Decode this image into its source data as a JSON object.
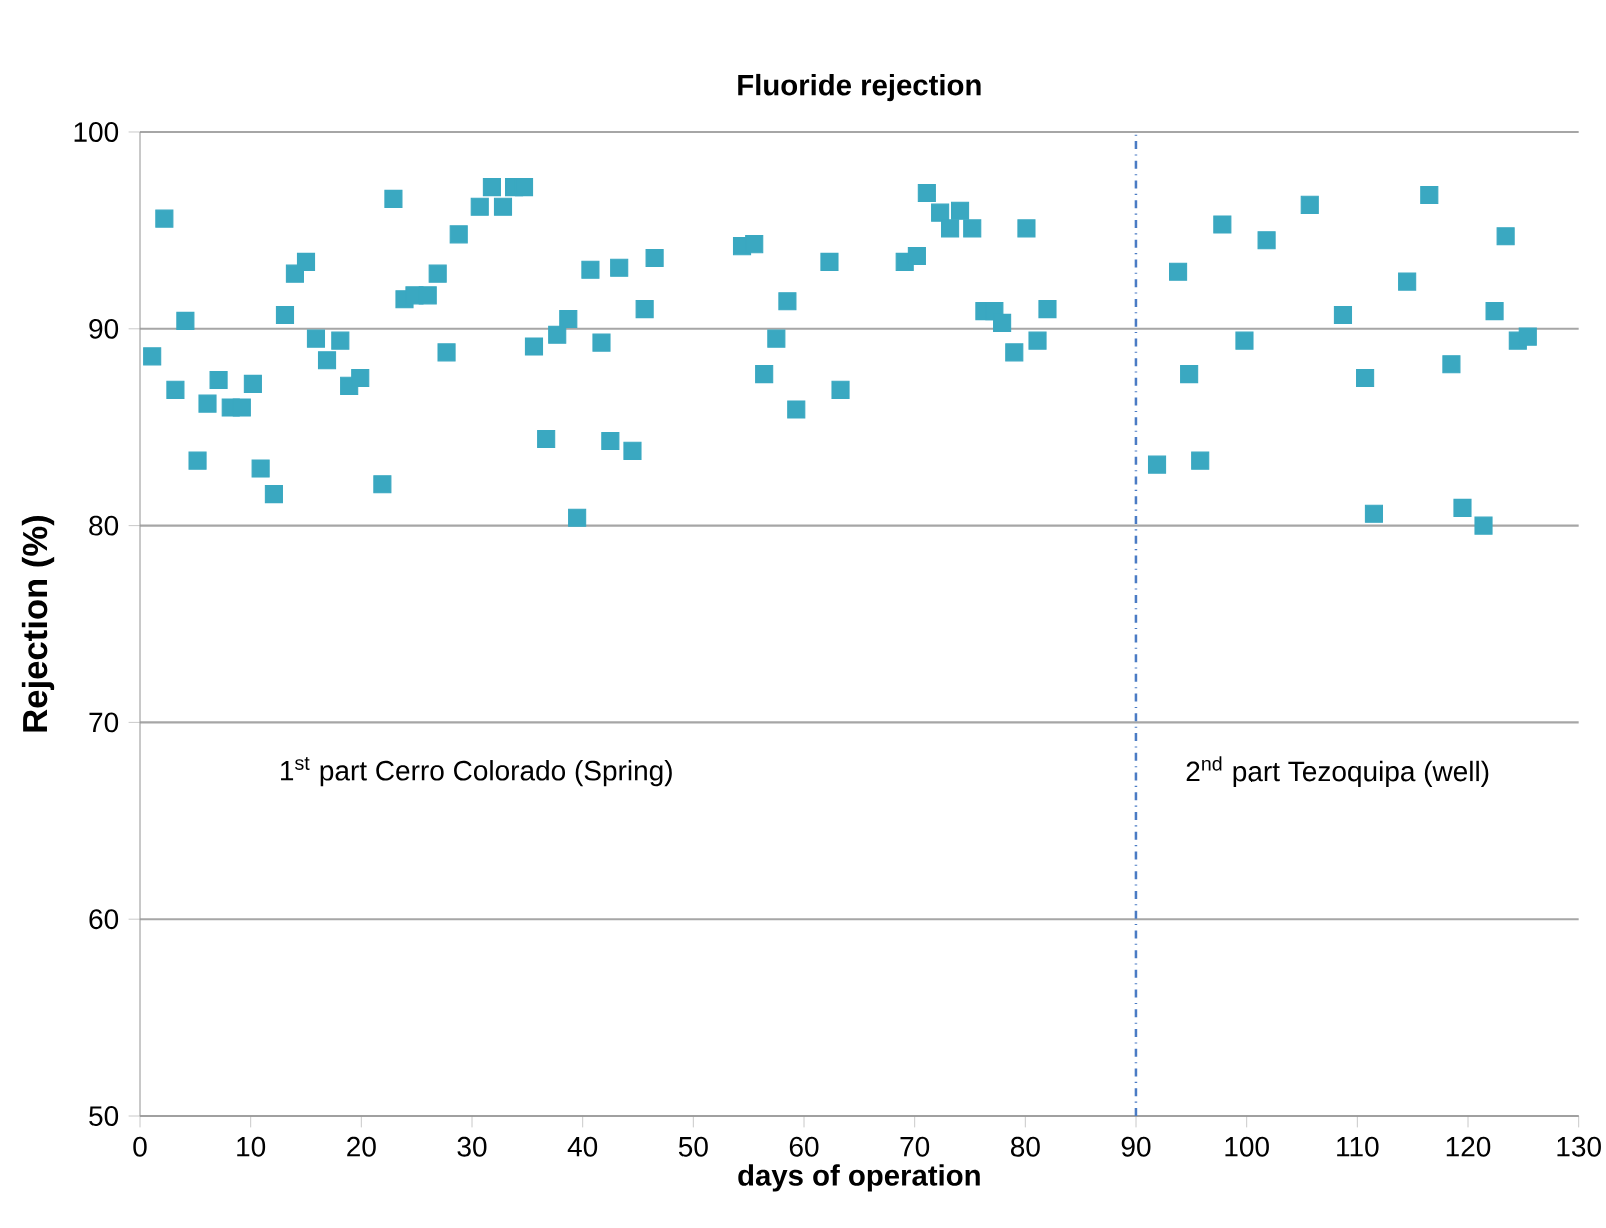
{
  "chart_data": {
    "type": "scatter",
    "title": "Fluoride rejection",
    "xlabel": "days of operation",
    "ylabel": "Rejection (%)",
    "annotations": [
      "1$^{st}$ part Cerro Colorado (Spring)",
      "2$^{nd}$ part Tezoquipa  (well)"
    ],
    "xlim": [
      0,
      130
    ],
    "xticks": [
      0,
      10,
      20,
      30,
      40,
      50,
      60,
      70,
      80,
      90,
      100,
      110,
      120,
      130
    ],
    "ylim": [
      50,
      100
    ],
    "yticks": [
      50,
      60,
      70,
      80,
      90,
      100
    ],
    "grid": "y",
    "marker": "square",
    "ref_lines": [
      {
        "axis": "x",
        "value": 90,
        "color": "#4a7bc4",
        "line_style": "dashdot"
      }
    ],
    "series": [
      {
        "color": "#3aa8c1",
        "x": [
          1.1,
          2.2,
          3.2,
          4.1,
          5.2,
          6.1,
          7.1,
          8.2,
          9.2,
          10.2,
          10.9,
          12.1,
          13.1,
          14.0,
          15.0,
          15.9,
          16.9,
          18.1,
          18.9,
          19.9,
          21.9,
          22.9,
          23.9,
          24.8,
          26.0,
          26.9,
          27.7,
          28.8,
          30.7,
          31.8,
          32.8,
          33.8,
          34.7,
          35.6,
          36.7,
          37.7,
          38.7,
          39.5,
          40.7,
          41.7,
          42.5,
          43.3,
          44.5,
          45.6,
          46.5,
          54.4,
          55.5,
          56.4,
          57.5,
          58.5,
          59.3,
          62.3,
          63.3,
          69.1,
          70.2,
          71.1,
          72.3,
          73.2,
          74.1,
          75.2,
          76.3,
          77.2,
          77.9,
          79.0,
          80.1,
          81.1,
          82.0,
          91.9,
          93.8,
          94.8,
          95.8,
          97.8,
          99.8,
          101.8,
          105.7,
          108.7,
          110.7,
          111.5,
          114.5,
          116.5,
          118.5,
          119.5,
          121.4,
          122.4,
          123.4,
          124.5,
          125.4
        ],
        "values": [
          88.6,
          95.6,
          86.9,
          90.4,
          83.3,
          86.2,
          87.4,
          86.0,
          86.0,
          87.2,
          82.9,
          81.6,
          90.7,
          92.8,
          93.4,
          89.5,
          88.4,
          89.4,
          87.1,
          87.5,
          82.1,
          96.6,
          91.5,
          91.7,
          91.7,
          92.8,
          88.8,
          94.8,
          96.2,
          97.2,
          96.2,
          97.2,
          97.2,
          89.1,
          84.4,
          89.7,
          90.5,
          80.4,
          93.0,
          89.3,
          84.3,
          93.1,
          83.8,
          91.0,
          93.6,
          94.2,
          94.3,
          87.7,
          89.5,
          91.4,
          85.9,
          93.4,
          86.9,
          93.4,
          93.7,
          96.9,
          95.9,
          95.1,
          96.0,
          95.1,
          90.9,
          90.9,
          90.3,
          88.8,
          95.1,
          89.4,
          91.0,
          83.1,
          92.9,
          87.7,
          83.3,
          95.3,
          89.4,
          94.5,
          96.3,
          90.7,
          87.5,
          80.6,
          92.4,
          96.8,
          88.2,
          80.9,
          80.0,
          90.9,
          94.7,
          89.4,
          89.6
        ]
      }
    ]
  }
}
